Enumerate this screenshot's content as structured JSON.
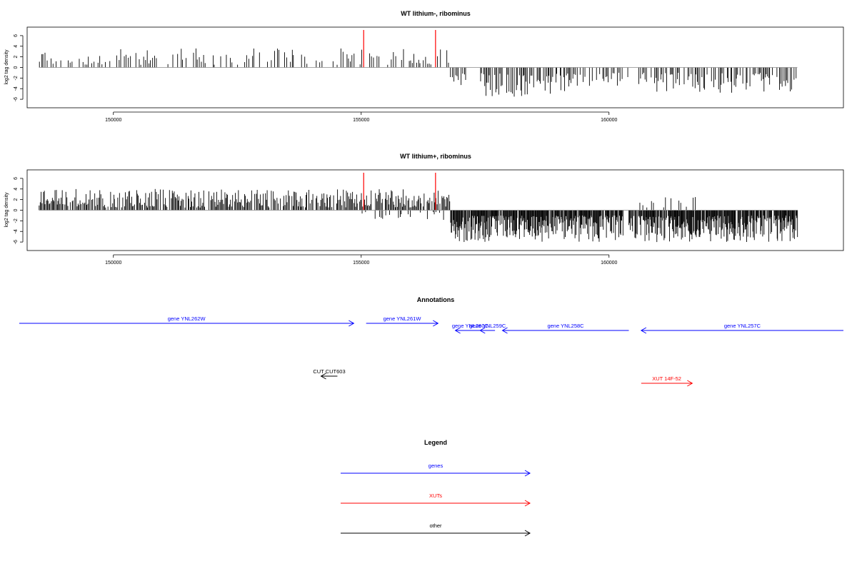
{
  "chart_data": [
    {
      "type": "bar",
      "title": "WT lithium-, ribominus",
      "ylabel": "log2 tag density",
      "xlim": [
        148260,
        164730
      ],
      "ylim": [
        -7.6,
        7.6
      ],
      "x_ticks": [
        150000,
        155000,
        160000
      ],
      "y_ticks": [
        -6,
        -4,
        -2,
        0,
        2,
        4,
        6
      ],
      "markers": [
        {
          "x": 155050,
          "color": "#ff0000"
        },
        {
          "x": 156500,
          "color": "#ff0000"
        }
      ],
      "segments": [
        {
          "from": 148500,
          "to": 156800,
          "sign": 1,
          "step": 38,
          "prob": 0.55,
          "lo": 0.5,
          "hi": 3.6,
          "seed": 11
        },
        {
          "from": 156800,
          "to": 157300,
          "sign": -1,
          "step": 30,
          "prob": 0.6,
          "lo": 1.0,
          "hi": 4.0,
          "seed": 12
        },
        {
          "from": 157400,
          "to": 159200,
          "sign": -1,
          "step": 22,
          "prob": 0.75,
          "lo": 1.0,
          "hi": 5.5,
          "seed": 13
        },
        {
          "from": 159200,
          "to": 160400,
          "sign": -1,
          "step": 30,
          "prob": 0.55,
          "lo": 1.0,
          "hi": 4.0,
          "seed": 14
        },
        {
          "from": 160600,
          "to": 163800,
          "sign": -1,
          "step": 24,
          "prob": 0.7,
          "lo": 1.0,
          "hi": 4.8,
          "seed": 15
        }
      ]
    },
    {
      "type": "bar",
      "title": "WT lithium+, ribominus",
      "ylabel": "log2 tag density",
      "xlim": [
        148260,
        164730
      ],
      "ylim": [
        -7.6,
        7.6
      ],
      "x_ticks": [
        150000,
        155000,
        160000
      ],
      "y_ticks": [
        -6,
        -4,
        -2,
        0,
        2,
        4,
        6
      ],
      "markers": [
        {
          "x": 155050,
          "color": "#ff0000"
        },
        {
          "x": 156500,
          "color": "#ff0000"
        }
      ],
      "segments": [
        {
          "from": 148500,
          "to": 156800,
          "sign": 1,
          "step": 20,
          "prob": 0.8,
          "lo": 0.5,
          "hi": 4.0,
          "seed": 21
        },
        {
          "from": 155000,
          "to": 156700,
          "sign": -1,
          "step": 35,
          "prob": 0.45,
          "lo": 0.3,
          "hi": 2.0,
          "seed": 22
        },
        {
          "from": 156800,
          "to": 160300,
          "sign": -1,
          "step": 12,
          "prob": 0.9,
          "lo": 1.0,
          "hi": 6.0,
          "seed": 23
        },
        {
          "from": 160400,
          "to": 163800,
          "sign": -1,
          "step": 12,
          "prob": 0.9,
          "lo": 1.0,
          "hi": 6.0,
          "seed": 24
        },
        {
          "from": 160600,
          "to": 161800,
          "sign": 1,
          "step": 40,
          "prob": 0.5,
          "lo": 0.5,
          "hi": 2.5,
          "seed": 25
        }
      ]
    }
  ],
  "annotations": {
    "title": "Annotations",
    "items": [
      {
        "label": "gene YNL262W",
        "color": "#0000ff",
        "start": 148100,
        "end": 154850,
        "dir": "right",
        "row": 0
      },
      {
        "label": "gene YNL261W",
        "color": "#0000ff",
        "start": 155100,
        "end": 156550,
        "dir": "right",
        "row": 0
      },
      {
        "label": "gene YNL260C",
        "color": "#0000ff",
        "start": 156900,
        "end": 157500,
        "dir": "left",
        "row": 1
      },
      {
        "label": "gene YNL259C",
        "color": "#0000ff",
        "start": 157400,
        "end": 157700,
        "dir": "left",
        "row": 1
      },
      {
        "label": "gene YNL258C",
        "color": "#0000ff",
        "start": 157850,
        "end": 160400,
        "dir": "left",
        "row": 1
      },
      {
        "label": "gene YNL257C",
        "color": "#0000ff",
        "start": 160650,
        "end": 164730,
        "dir": "left",
        "row": 1
      },
      {
        "label": "CUT CUT603",
        "color": "#000000",
        "start": 154190,
        "end": 154520,
        "dir": "left",
        "row": 2
      },
      {
        "label": "XUT 14F-52",
        "color": "#ff0000",
        "start": 160650,
        "end": 161680,
        "dir": "right",
        "row": 3
      }
    ]
  },
  "legend": {
    "title": "Legend",
    "items": [
      {
        "label": "genes",
        "color": "#0000ff"
      },
      {
        "label": "XUTs",
        "color": "#ff0000"
      },
      {
        "label": "other",
        "color": "#000000"
      }
    ]
  }
}
